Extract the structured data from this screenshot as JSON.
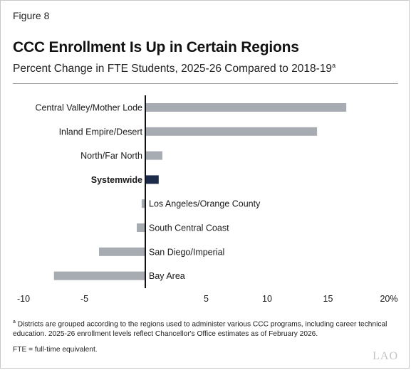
{
  "figure_label": "Figure 8",
  "title": "CCC Enrollment Is Up in Certain Regions",
  "subtitle": "Percent Change in FTE Students, 2025-26 Compared to 2018-19",
  "subtitle_note_mark": "a",
  "footnote_a_mark": "a",
  "footnote_a": "Districts are grouped according to the regions used to administer various CCC programs, including career technical education. 2025-26 enrollment levels reflect Chancellor's Office estimates as of February 2026.",
  "footnote_fte": "FTE = full-time equivalent.",
  "logo": "LAO",
  "colors": {
    "bar": "#a7abb2",
    "highlight": "#1c2b4a",
    "axis": "#111111"
  },
  "chart_data": {
    "type": "bar",
    "orientation": "horizontal",
    "categories": [
      "Central Valley/Mother Lode",
      "Inland Empire/Desert",
      "North/Far North",
      "Systemwide",
      "Los Angeles/Orange County",
      "South Central Coast",
      "San Diego/Imperial",
      "Bay Area"
    ],
    "values": [
      16.5,
      14.1,
      1.4,
      1.1,
      -0.3,
      -0.7,
      -3.8,
      -7.5
    ],
    "highlight_category": "Systemwide",
    "xlim": [
      -10,
      20
    ],
    "xticks": [
      -10,
      -5,
      5,
      10,
      15,
      20
    ],
    "xtick_labels": [
      "-10",
      "-5",
      "5",
      "10",
      "15",
      "20%"
    ],
    "grid": false,
    "legend": "none"
  }
}
